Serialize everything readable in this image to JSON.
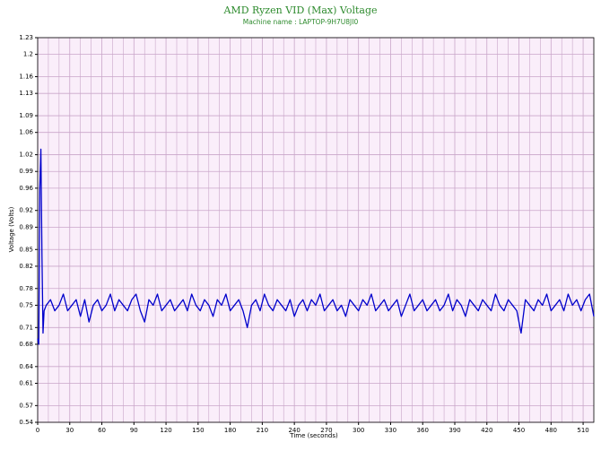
{
  "chart_data": {
    "type": "line",
    "title": "AMD Ryzen VID (Max) Voltage",
    "subtitle": "Machine name : LAPTOP-9H7U8JI0",
    "x_label": "Time (seconds)",
    "y_label": "Voltage (Volts)",
    "xlim": [
      0,
      520
    ],
    "ylim": [
      0.54,
      1.23
    ],
    "xticks": [
      0,
      30,
      60,
      90,
      120,
      150,
      180,
      210,
      240,
      270,
      300,
      330,
      360,
      390,
      420,
      450,
      480,
      510
    ],
    "yticks": [
      0.54,
      0.57,
      0.61,
      0.64,
      0.68,
      0.71,
      0.75,
      0.78,
      0.82,
      0.85,
      0.89,
      0.92,
      0.96,
      0.99,
      1.02,
      1.06,
      1.09,
      1.13,
      1.16,
      1.2,
      1.23
    ],
    "grid": true,
    "background": "#faeefa",
    "grid_color": "#c9a6c9",
    "x": [
      0,
      1,
      2,
      3,
      4,
      5,
      6,
      8,
      12,
      16,
      20,
      24,
      28,
      32,
      36,
      40,
      44,
      48,
      52,
      56,
      60,
      64,
      68,
      72,
      76,
      80,
      84,
      88,
      92,
      96,
      100,
      104,
      108,
      112,
      116,
      120,
      124,
      128,
      132,
      136,
      140,
      144,
      148,
      152,
      156,
      160,
      164,
      168,
      172,
      176,
      180,
      184,
      188,
      192,
      196,
      200,
      204,
      208,
      212,
      216,
      220,
      224,
      228,
      232,
      236,
      240,
      244,
      248,
      252,
      256,
      260,
      264,
      268,
      272,
      276,
      280,
      284,
      288,
      292,
      296,
      300,
      304,
      308,
      312,
      316,
      320,
      324,
      328,
      332,
      336,
      340,
      344,
      348,
      352,
      356,
      360,
      364,
      368,
      372,
      376,
      380,
      384,
      388,
      392,
      396,
      400,
      404,
      408,
      412,
      416,
      420,
      424,
      428,
      432,
      436,
      440,
      444,
      448,
      452,
      456,
      460,
      464,
      468,
      472,
      476,
      480,
      484,
      488,
      492,
      496,
      500,
      504,
      508,
      512,
      516,
      520
    ],
    "series": [
      {
        "name": "VID",
        "color": "#0000cc",
        "values": [
          0.69,
          0.68,
          0.96,
          1.03,
          0.84,
          0.7,
          0.74,
          0.75,
          0.76,
          0.74,
          0.75,
          0.77,
          0.74,
          0.75,
          0.76,
          0.73,
          0.76,
          0.72,
          0.75,
          0.76,
          0.74,
          0.75,
          0.77,
          0.74,
          0.76,
          0.75,
          0.74,
          0.76,
          0.77,
          0.74,
          0.72,
          0.76,
          0.75,
          0.77,
          0.74,
          0.75,
          0.76,
          0.74,
          0.75,
          0.76,
          0.74,
          0.77,
          0.75,
          0.74,
          0.76,
          0.75,
          0.73,
          0.76,
          0.75,
          0.77,
          0.74,
          0.75,
          0.76,
          0.74,
          0.71,
          0.75,
          0.76,
          0.74,
          0.77,
          0.75,
          0.74,
          0.76,
          0.75,
          0.74,
          0.76,
          0.73,
          0.75,
          0.76,
          0.74,
          0.76,
          0.75,
          0.77,
          0.74,
          0.75,
          0.76,
          0.74,
          0.75,
          0.73,
          0.76,
          0.75,
          0.74,
          0.76,
          0.75,
          0.77,
          0.74,
          0.75,
          0.76,
          0.74,
          0.75,
          0.76,
          0.73,
          0.75,
          0.77,
          0.74,
          0.75,
          0.76,
          0.74,
          0.75,
          0.76,
          0.74,
          0.75,
          0.77,
          0.74,
          0.76,
          0.75,
          0.73,
          0.76,
          0.75,
          0.74,
          0.76,
          0.75,
          0.74,
          0.77,
          0.75,
          0.74,
          0.76,
          0.75,
          0.74,
          0.7,
          0.76,
          0.75,
          0.74,
          0.76,
          0.75,
          0.77,
          0.74,
          0.75,
          0.76,
          0.74,
          0.77,
          0.75,
          0.76,
          0.74,
          0.76,
          0.77,
          0.73
        ]
      }
    ]
  }
}
